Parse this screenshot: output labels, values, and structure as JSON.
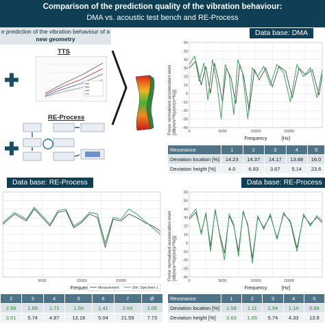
{
  "banner": {
    "title": "Comparison of the prediction quality of the vibration behaviour:",
    "subtitle": "DMA vs. acoustic test bench and RE-Process"
  },
  "left_panel": {
    "heading_line1": "e prediction of the vibration behaviour of a",
    "heading_line2": "new geometry",
    "tts_label": "TTS",
    "re_process_label": "RE-Process"
  },
  "panels": {
    "top_right_tag": "Data base: DMA",
    "bottom_left_tag": "Data base: RE-Process",
    "bottom_right_tag": "Data base: RE-Process"
  },
  "axis": {
    "ylabel_line1": "Force normalised acceleration level",
    "ylabel_line2": "[dB(m/s²*N)/(m/(s²*N))]",
    "xlabel": "Frequency",
    "xunit": "[Hz]"
  },
  "legend": {
    "measurement": "Measurement",
    "simulation": "Sim. Specimen 1"
  },
  "tables": {
    "top_right": {
      "header": [
        "Resonance",
        "1",
        "2",
        "3",
        "4",
        "5"
      ],
      "rows": [
        [
          "Deviation location [%]",
          "14.23",
          "14.37",
          "14.17",
          "13.88",
          "16.0"
        ],
        [
          "Deviation height [%]",
          "4.0",
          "6.83",
          "3.67",
          "5.14",
          "23.6"
        ]
      ]
    },
    "bottom_left": {
      "header": [
        "2",
        "3",
        "4",
        "5",
        "6",
        "7",
        "Ø"
      ],
      "rows": [
        [
          "2.96",
          "1.69",
          "1.71",
          "1.50",
          "1.41",
          "2.64",
          "2.05"
        ],
        [
          "3.51",
          "5.74",
          "4.87",
          "13.18",
          "5.04",
          "21.59",
          "7.73"
        ]
      ]
    },
    "bottom_right": {
      "header": [
        "Resonance",
        "1",
        "2",
        "3",
        "4",
        "5"
      ],
      "rows": [
        [
          "Deviation location [%]",
          "1.58",
          "1.11",
          "1.94",
          "1.14",
          "0.89"
        ],
        [
          "Deviation height [%]",
          "0.63",
          "1.65",
          "5.74",
          "4.33",
          "13.8"
        ]
      ]
    }
  },
  "chart_data": [
    {
      "type": "line",
      "panel": "top-right",
      "xlabel": "Frequency [Hz]",
      "ylabel": "Force normalised acceleration level [dB(m/s²*N)/(m/(s²*N))]",
      "xlim": [
        0,
        20000
      ],
      "ylim": [
        -40,
        60
      ],
      "xticks": [
        "0",
        "5000",
        "10000",
        "15000"
      ],
      "yticks": [
        "-40",
        "-30",
        "-20",
        "-10",
        "0",
        "10",
        "20",
        "30",
        "40",
        "50",
        "60"
      ],
      "grid": true,
      "series": [
        {
          "color": "#555555",
          "x": [
            0,
            1000,
            1800,
            2500,
            3200,
            3800,
            4500,
            5000,
            5600,
            6300,
            7000,
            7600,
            8200,
            9000,
            9800,
            10500,
            11500,
            12500,
            13500,
            14500,
            15500,
            16500,
            17500,
            18500,
            19500,
            20000
          ],
          "y": [
            30,
            38,
            10,
            32,
            0,
            36,
            12,
            -10,
            30,
            18,
            -12,
            34,
            20,
            -20,
            28,
            16,
            30,
            8,
            32,
            26,
            -5,
            30,
            22,
            28,
            -2,
            22
          ]
        },
        {
          "color": "#3aa55c",
          "x": [
            0,
            800,
            1500,
            2200,
            2800,
            3500,
            4200,
            4800,
            5400,
            6000,
            6700,
            7300,
            8000,
            8800,
            9500,
            10300,
            11200,
            12200,
            13200,
            14200,
            15200,
            16200,
            17200,
            18200,
            19200,
            20000
          ],
          "y": [
            34,
            44,
            14,
            36,
            -8,
            40,
            10,
            -30,
            34,
            22,
            -25,
            40,
            24,
            -30,
            30,
            20,
            32,
            10,
            34,
            24,
            -10,
            34,
            20,
            30,
            -5,
            28
          ]
        }
      ]
    },
    {
      "type": "line",
      "panel": "bottom-left",
      "xlabel": "Frequency [Hz]",
      "xlim": [
        0,
        20000
      ],
      "ylim": [
        -40,
        60
      ],
      "xticks": [
        "5000",
        "10000",
        "15000"
      ],
      "grid": true,
      "series": [
        {
          "name": "Measurement",
          "color": "#555555",
          "x": [
            0,
            1500,
            3000,
            4000,
            5000,
            6000,
            7000,
            8000,
            9000,
            10000,
            11000,
            12000,
            13000,
            14000,
            15000,
            16000,
            17000,
            18000,
            19000,
            20000
          ],
          "y": [
            22,
            34,
            26,
            40,
            30,
            20,
            36,
            38,
            18,
            24,
            34,
            30,
            -5,
            28,
            26,
            34,
            30,
            24,
            20,
            14
          ]
        },
        {
          "name": "Sim. Specimen 1",
          "color": "#3aa55c",
          "x": [
            0,
            1500,
            3000,
            4000,
            5000,
            6000,
            7000,
            8000,
            9000,
            10000,
            11000,
            12000,
            13000,
            14000,
            15000,
            16000,
            17000,
            18000,
            19000,
            20000
          ],
          "y": [
            24,
            36,
            28,
            42,
            32,
            22,
            38,
            40,
            20,
            26,
            36,
            34,
            0,
            30,
            28,
            40,
            34,
            26,
            18,
            10
          ]
        }
      ]
    },
    {
      "type": "line",
      "panel": "bottom-right",
      "xlabel": "Frequency [Hz]",
      "ylabel": "Force normalised acceleration level [dB(m/s²*N)/(m/(s²*N))]",
      "xlim": [
        0,
        20000
      ],
      "ylim": [
        -40,
        60
      ],
      "xticks": [
        "0",
        "5000",
        "10000",
        "15000"
      ],
      "yticks": [
        "-40",
        "-30",
        "-20",
        "-10",
        "0",
        "10",
        "20",
        "30",
        "40",
        "50",
        "60"
      ],
      "grid": true,
      "series": [
        {
          "color": "#555555",
          "x": [
            0,
            1000,
            1800,
            2500,
            3200,
            3900,
            4600,
            5300,
            6000,
            6700,
            7400,
            8100,
            8800,
            9500,
            10300,
            11200,
            12200,
            13200,
            14200,
            15200,
            16200,
            17200,
            18200,
            19200,
            20000
          ],
          "y": [
            28,
            36,
            12,
            34,
            -4,
            38,
            10,
            -12,
            32,
            20,
            -10,
            36,
            22,
            -18,
            30,
            18,
            32,
            6,
            34,
            26,
            -6,
            32,
            22,
            30,
            24
          ]
        },
        {
          "color": "#3aa55c",
          "x": [
            0,
            1000,
            1800,
            2500,
            3200,
            3900,
            4600,
            5300,
            6000,
            6700,
            7400,
            8100,
            8800,
            9500,
            10300,
            11200,
            12200,
            13200,
            14200,
            15200,
            16200,
            17200,
            18200,
            19200,
            20000
          ],
          "y": [
            30,
            40,
            10,
            36,
            -10,
            40,
            8,
            -20,
            34,
            22,
            -16,
            38,
            20,
            -24,
            32,
            16,
            34,
            4,
            36,
            24,
            -10,
            34,
            20,
            32,
            26
          ]
        }
      ]
    }
  ]
}
